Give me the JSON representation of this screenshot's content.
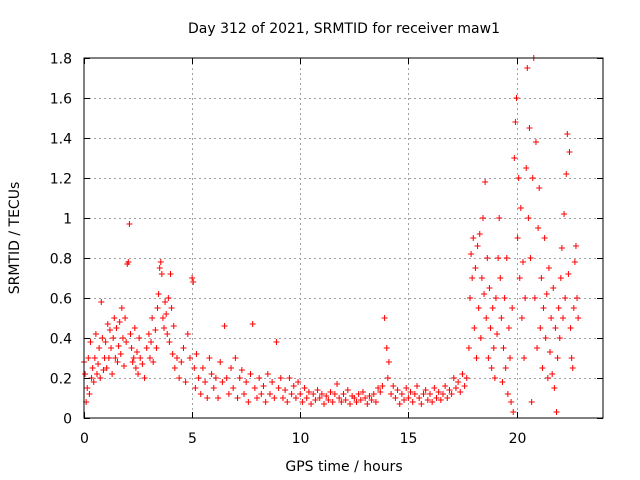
{
  "chart_data": {
    "type": "scatter",
    "title": "Day 312 of 2021, SRMTID for receiver maw1",
    "xlabel": "GPS time / hours",
    "ylabel": "SRMTID / TECUs",
    "xlim": [
      0,
      24
    ],
    "ylim": [
      0,
      1.8
    ],
    "xticks": [
      0,
      5,
      10,
      15,
      20
    ],
    "xtick_labels": [
      "0",
      "5",
      "10",
      "15",
      "20"
    ],
    "yticks": [
      0,
      0.2,
      0.4,
      0.6,
      0.8,
      1,
      1.2,
      1.4,
      1.6,
      1.8
    ],
    "ytick_labels": [
      "0",
      "0.2",
      "0.4",
      "0.6",
      "0.8",
      "1",
      "1.2",
      "1.4",
      "1.6",
      "1.8"
    ],
    "grid": true,
    "marker": "+",
    "color": "#ff0000",
    "series": [
      {
        "name": "SRMTID maw1",
        "points": [
          [
            0.0,
            0.28
          ],
          [
            0.05,
            0.22
          ],
          [
            0.1,
            0.08
          ],
          [
            0.15,
            0.15
          ],
          [
            0.2,
            0.3
          ],
          [
            0.25,
            0.12
          ],
          [
            0.3,
            0.38
          ],
          [
            0.35,
            0.2
          ],
          [
            0.4,
            0.25
          ],
          [
            0.45,
            0.18
          ],
          [
            0.5,
            0.3
          ],
          [
            0.55,
            0.42
          ],
          [
            0.6,
            0.22
          ],
          [
            0.65,
            0.27
          ],
          [
            0.7,
            0.35
          ],
          [
            0.75,
            0.2
          ],
          [
            0.8,
            0.58
          ],
          [
            0.85,
            0.4
          ],
          [
            0.9,
            0.24
          ],
          [
            0.95,
            0.3
          ],
          [
            1.0,
            0.38
          ],
          [
            1.05,
            0.25
          ],
          [
            1.1,
            0.47
          ],
          [
            1.15,
            0.3
          ],
          [
            1.2,
            0.44
          ],
          [
            1.25,
            0.35
          ],
          [
            1.3,
            0.22
          ],
          [
            1.35,
            0.4
          ],
          [
            1.4,
            0.5
          ],
          [
            1.45,
            0.3
          ],
          [
            1.5,
            0.45
          ],
          [
            1.55,
            0.28
          ],
          [
            1.6,
            0.36
          ],
          [
            1.65,
            0.48
          ],
          [
            1.7,
            0.32
          ],
          [
            1.75,
            0.55
          ],
          [
            1.8,
            0.4
          ],
          [
            1.85,
            0.26
          ],
          [
            1.9,
            0.5
          ],
          [
            1.95,
            0.38
          ],
          [
            2.0,
            0.77
          ],
          [
            2.05,
            0.78
          ],
          [
            2.1,
            0.97
          ],
          [
            2.15,
            0.42
          ],
          [
            2.2,
            0.35
          ],
          [
            2.25,
            0.28
          ],
          [
            2.3,
            0.3
          ],
          [
            2.35,
            0.45
          ],
          [
            2.4,
            0.25
          ],
          [
            2.45,
            0.33
          ],
          [
            2.5,
            0.22
          ],
          [
            2.55,
            0.4
          ],
          [
            2.6,
            0.3
          ],
          [
            2.7,
            0.27
          ],
          [
            2.8,
            0.2
          ],
          [
            2.9,
            0.35
          ],
          [
            3.0,
            0.42
          ],
          [
            3.05,
            0.3
          ],
          [
            3.1,
            0.38
          ],
          [
            3.15,
            0.5
          ],
          [
            3.2,
            0.28
          ],
          [
            3.3,
            0.44
          ],
          [
            3.35,
            0.35
          ],
          [
            3.4,
            0.55
          ],
          [
            3.45,
            0.62
          ],
          [
            3.5,
            0.75
          ],
          [
            3.55,
            0.78
          ],
          [
            3.6,
            0.72
          ],
          [
            3.65,
            0.5
          ],
          [
            3.7,
            0.45
          ],
          [
            3.75,
            0.58
          ],
          [
            3.8,
            0.52
          ],
          [
            3.85,
            0.42
          ],
          [
            3.9,
            0.6
          ],
          [
            3.95,
            0.38
          ],
          [
            4.0,
            0.72
          ],
          [
            4.05,
            0.55
          ],
          [
            4.1,
            0.32
          ],
          [
            4.15,
            0.46
          ],
          [
            4.2,
            0.25
          ],
          [
            4.3,
            0.3
          ],
          [
            4.4,
            0.2
          ],
          [
            4.5,
            0.28
          ],
          [
            4.6,
            0.35
          ],
          [
            4.7,
            0.18
          ],
          [
            4.8,
            0.42
          ],
          [
            4.9,
            0.3
          ],
          [
            5.0,
            0.7
          ],
          [
            5.05,
            0.68
          ],
          [
            5.1,
            0.25
          ],
          [
            5.15,
            0.15
          ],
          [
            5.2,
            0.32
          ],
          [
            5.3,
            0.2
          ],
          [
            5.4,
            0.12
          ],
          [
            5.5,
            0.25
          ],
          [
            5.6,
            0.18
          ],
          [
            5.7,
            0.1
          ],
          [
            5.8,
            0.3
          ],
          [
            5.9,
            0.22
          ],
          [
            6.0,
            0.15
          ],
          [
            6.1,
            0.2
          ],
          [
            6.2,
            0.1
          ],
          [
            6.3,
            0.28
          ],
          [
            6.4,
            0.18
          ],
          [
            6.5,
            0.46
          ],
          [
            6.6,
            0.2
          ],
          [
            6.7,
            0.12
          ],
          [
            6.8,
            0.25
          ],
          [
            6.9,
            0.15
          ],
          [
            7.0,
            0.3
          ],
          [
            7.1,
            0.1
          ],
          [
            7.2,
            0.2
          ],
          [
            7.3,
            0.24
          ],
          [
            7.4,
            0.12
          ],
          [
            7.5,
            0.18
          ],
          [
            7.6,
            0.08
          ],
          [
            7.7,
            0.22
          ],
          [
            7.8,
            0.47
          ],
          [
            7.9,
            0.15
          ],
          [
            8.0,
            0.1
          ],
          [
            8.1,
            0.2
          ],
          [
            8.2,
            0.12
          ],
          [
            8.3,
            0.16
          ],
          [
            8.4,
            0.08
          ],
          [
            8.5,
            0.22
          ],
          [
            8.6,
            0.12
          ],
          [
            8.7,
            0.18
          ],
          [
            8.8,
            0.1
          ],
          [
            8.9,
            0.38
          ],
          [
            9.0,
            0.15
          ],
          [
            9.1,
            0.2
          ],
          [
            9.2,
            0.1
          ],
          [
            9.3,
            0.14
          ],
          [
            9.4,
            0.08
          ],
          [
            9.5,
            0.2
          ],
          [
            9.6,
            0.12
          ],
          [
            9.7,
            0.16
          ],
          [
            9.8,
            0.1
          ],
          [
            9.9,
            0.18
          ],
          [
            10.0,
            0.12
          ],
          [
            10.1,
            0.08
          ],
          [
            10.2,
            0.15
          ],
          [
            10.3,
            0.1
          ],
          [
            10.4,
            0.13
          ],
          [
            10.5,
            0.07
          ],
          [
            10.6,
            0.12
          ],
          [
            10.7,
            0.09
          ],
          [
            10.8,
            0.14
          ],
          [
            10.9,
            0.1
          ],
          [
            11.0,
            0.12
          ],
          [
            11.1,
            0.07
          ],
          [
            11.2,
            0.11
          ],
          [
            11.3,
            0.09
          ],
          [
            11.4,
            0.13
          ],
          [
            11.5,
            0.08
          ],
          [
            11.6,
            0.12
          ],
          [
            11.7,
            0.17
          ],
          [
            11.8,
            0.1
          ],
          [
            11.9,
            0.08
          ],
          [
            12.0,
            0.12
          ],
          [
            12.1,
            0.09
          ],
          [
            12.2,
            0.14
          ],
          [
            12.3,
            0.07
          ],
          [
            12.4,
            0.11
          ],
          [
            12.5,
            0.1
          ],
          [
            12.6,
            0.08
          ],
          [
            12.7,
            0.12
          ],
          [
            12.8,
            0.09
          ],
          [
            12.9,
            0.13
          ],
          [
            13.0,
            0.1
          ],
          [
            13.1,
            0.07
          ],
          [
            13.2,
            0.11
          ],
          [
            13.3,
            0.09
          ],
          [
            13.4,
            0.12
          ],
          [
            13.5,
            0.08
          ],
          [
            13.6,
            0.15
          ],
          [
            13.7,
            0.13
          ],
          [
            13.8,
            0.16
          ],
          [
            13.9,
            0.5
          ],
          [
            14.0,
            0.35
          ],
          [
            14.05,
            0.2
          ],
          [
            14.1,
            0.28
          ],
          [
            14.2,
            0.12
          ],
          [
            14.3,
            0.16
          ],
          [
            14.4,
            0.1
          ],
          [
            14.5,
            0.14
          ],
          [
            14.6,
            0.07
          ],
          [
            14.7,
            0.12
          ],
          [
            14.8,
            0.09
          ],
          [
            14.9,
            0.15
          ],
          [
            15.0,
            0.1
          ],
          [
            15.1,
            0.13
          ],
          [
            15.2,
            0.08
          ],
          [
            15.3,
            0.12
          ],
          [
            15.4,
            0.16
          ],
          [
            15.5,
            0.1
          ],
          [
            15.6,
            0.07
          ],
          [
            15.7,
            0.12
          ],
          [
            15.8,
            0.14
          ],
          [
            15.9,
            0.09
          ],
          [
            16.0,
            0.12
          ],
          [
            16.1,
            0.08
          ],
          [
            16.2,
            0.15
          ],
          [
            16.3,
            0.1
          ],
          [
            16.4,
            0.13
          ],
          [
            16.5,
            0.09
          ],
          [
            16.6,
            0.12
          ],
          [
            16.7,
            0.16
          ],
          [
            16.8,
            0.1
          ],
          [
            16.9,
            0.14
          ],
          [
            17.0,
            0.12
          ],
          [
            17.1,
            0.2
          ],
          [
            17.2,
            0.15
          ],
          [
            17.3,
            0.18
          ],
          [
            17.4,
            0.13
          ],
          [
            17.5,
            0.22
          ],
          [
            17.6,
            0.16
          ],
          [
            17.7,
            0.2
          ],
          [
            17.8,
            0.35
          ],
          [
            17.85,
            0.6
          ],
          [
            17.9,
            0.82
          ],
          [
            17.95,
            0.7
          ],
          [
            18.0,
            0.9
          ],
          [
            18.05,
            0.45
          ],
          [
            18.1,
            0.75
          ],
          [
            18.15,
            0.3
          ],
          [
            18.2,
            0.86
          ],
          [
            18.25,
            0.55
          ],
          [
            18.3,
            0.92
          ],
          [
            18.35,
            0.4
          ],
          [
            18.4,
            0.7
          ],
          [
            18.45,
            1.0
          ],
          [
            18.5,
            0.62
          ],
          [
            18.55,
            1.18
          ],
          [
            18.6,
            0.5
          ],
          [
            18.65,
            0.8
          ],
          [
            18.7,
            0.3
          ],
          [
            18.75,
            0.65
          ],
          [
            18.8,
            0.45
          ],
          [
            18.85,
            0.25
          ],
          [
            18.9,
            0.55
          ],
          [
            18.95,
            0.35
          ],
          [
            19.0,
            0.2
          ],
          [
            19.05,
            0.6
          ],
          [
            19.1,
            0.42
          ],
          [
            19.15,
            0.8
          ],
          [
            19.2,
            1.0
          ],
          [
            19.25,
            0.7
          ],
          [
            19.3,
            0.5
          ],
          [
            19.35,
            0.18
          ],
          [
            19.4,
            0.35
          ],
          [
            19.45,
            0.6
          ],
          [
            19.5,
            0.25
          ],
          [
            19.55,
            0.8
          ],
          [
            19.6,
            0.12
          ],
          [
            19.65,
            0.45
          ],
          [
            19.7,
            0.3
          ],
          [
            19.75,
            0.08
          ],
          [
            19.8,
            0.55
          ],
          [
            19.85,
            0.03
          ],
          [
            19.9,
            1.3
          ],
          [
            19.95,
            1.48
          ],
          [
            20.0,
            1.6
          ],
          [
            20.05,
            0.9
          ],
          [
            20.1,
            1.2
          ],
          [
            20.15,
            0.7
          ],
          [
            20.2,
            1.05
          ],
          [
            20.25,
            0.5
          ],
          [
            20.3,
            0.78
          ],
          [
            20.35,
            0.3
          ],
          [
            20.4,
            0.6
          ],
          [
            20.45,
            1.25
          ],
          [
            20.5,
            1.75
          ],
          [
            20.55,
            1.0
          ],
          [
            20.6,
            1.45
          ],
          [
            20.65,
            0.8
          ],
          [
            20.7,
            0.08
          ],
          [
            20.75,
            1.2
          ],
          [
            20.8,
            1.8
          ],
          [
            20.85,
            0.6
          ],
          [
            20.9,
            1.38
          ],
          [
            20.95,
            0.35
          ],
          [
            21.0,
            0.95
          ],
          [
            21.05,
            1.15
          ],
          [
            21.1,
            0.45
          ],
          [
            21.15,
            0.7
          ],
          [
            21.2,
            0.25
          ],
          [
            21.25,
            0.55
          ],
          [
            21.3,
            0.9
          ],
          [
            21.35,
            0.4
          ],
          [
            21.4,
            0.62
          ],
          [
            21.45,
            0.2
          ],
          [
            21.5,
            0.75
          ],
          [
            21.55,
            0.33
          ],
          [
            21.6,
            0.5
          ],
          [
            21.65,
            0.22
          ],
          [
            21.7,
            0.65
          ],
          [
            21.75,
            0.15
          ],
          [
            21.8,
            0.45
          ],
          [
            21.85,
            0.03
          ],
          [
            21.9,
            0.3
          ],
          [
            21.95,
            0.55
          ],
          [
            22.0,
            0.4
          ],
          [
            22.05,
            0.7
          ],
          [
            22.1,
            0.85
          ],
          [
            22.15,
            0.5
          ],
          [
            22.2,
            1.02
          ],
          [
            22.25,
            0.6
          ],
          [
            22.3,
            1.22
          ],
          [
            22.35,
            1.42
          ],
          [
            22.4,
            0.72
          ],
          [
            22.45,
            1.33
          ],
          [
            22.5,
            0.45
          ],
          [
            22.55,
            0.3
          ],
          [
            22.6,
            0.25
          ],
          [
            22.65,
            0.55
          ],
          [
            22.7,
            0.78
          ],
          [
            22.75,
            0.86
          ],
          [
            22.8,
            0.6
          ],
          [
            22.85,
            0.5
          ]
        ]
      }
    ]
  }
}
